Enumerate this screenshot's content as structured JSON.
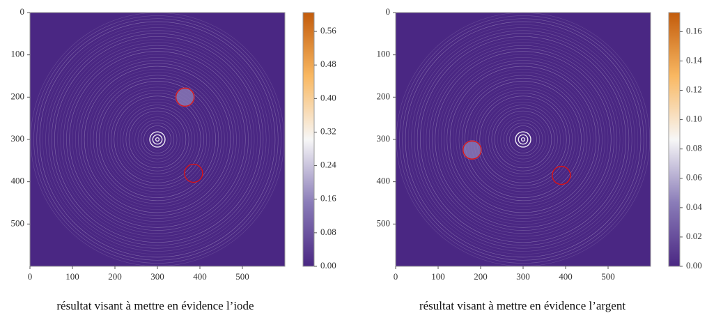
{
  "chart_data": [
    {
      "type": "image",
      "caption": "résultat visant à mettre en évidence l’iode",
      "xlim": [
        0,
        600
      ],
      "ylim": [
        600,
        0
      ],
      "xticks": [
        0,
        100,
        200,
        300,
        400,
        500
      ],
      "yticks": [
        0,
        100,
        200,
        300,
        400,
        500
      ],
      "colormap": [
        "#4a2783",
        "#8a7cb8",
        "#f7f7f7",
        "#f9b862",
        "#c25b0b"
      ],
      "clim": [
        0,
        0.605
      ],
      "cticks": [
        {
          "value": 0,
          "label": "0.00"
        },
        0.08,
        0.16,
        0.24,
        0.32,
        {
          "value": 0.4,
          "label": "0.40"
        },
        0.48,
        0.56
      ]
    },
    {
      "type": "image",
      "caption": "résultat visant à mettre en évidence l’argent",
      "xlim": [
        0,
        600
      ],
      "ylim": [
        600,
        0
      ],
      "xticks": [
        0,
        100,
        200,
        300,
        400,
        500
      ],
      "yticks": [
        0,
        100,
        200,
        300,
        400,
        500
      ],
      "colormap": [
        "#4a2783",
        "#8a7cb8",
        "#f7f7f7",
        "#f9b862",
        "#c25b0b"
      ],
      "clim": [
        0,
        0.173
      ],
      "cticks": [
        {
          "value": 0,
          "label": "0.00"
        },
        0.02,
        0.04,
        0.06,
        0.08,
        {
          "value": 0.1,
          "label": "0.10"
        },
        0.12,
        0.14,
        0.16
      ]
    }
  ]
}
